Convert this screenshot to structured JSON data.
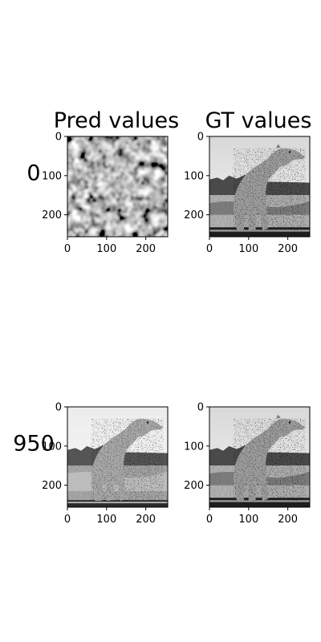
{
  "chart_data": {
    "type": "heatmap",
    "column_titles": [
      "Pred values",
      "GT values"
    ],
    "row_labels": [
      "0",
      "950"
    ],
    "axes": [
      {
        "row": "0",
        "column": "Pred values",
        "image": "noise-texture",
        "xticks": [
          0,
          100,
          200
        ],
        "yticks": [
          0,
          100,
          200
        ],
        "xlim": [
          0,
          256
        ],
        "ylim": [
          256,
          0
        ]
      },
      {
        "row": "0",
        "column": "GT values",
        "image": "cheetah-grayscale",
        "xticks": [
          0,
          100,
          200
        ],
        "yticks": [
          0,
          100,
          200
        ],
        "xlim": [
          0,
          256
        ],
        "ylim": [
          256,
          0
        ]
      },
      {
        "row": "950",
        "column": "Pred values",
        "image": "cheetah-grayscale-reconstruction",
        "xticks": [
          0,
          100,
          200
        ],
        "yticks": [
          0,
          100,
          200
        ],
        "xlim": [
          0,
          256
        ],
        "ylim": [
          256,
          0
        ]
      },
      {
        "row": "950",
        "column": "GT values",
        "image": "cheetah-grayscale",
        "xticks": [
          0,
          100,
          200
        ],
        "yticks": [
          0,
          100,
          200
        ],
        "xlim": [
          0,
          256
        ],
        "ylim": [
          256,
          0
        ]
      }
    ],
    "colormap": "gray"
  }
}
